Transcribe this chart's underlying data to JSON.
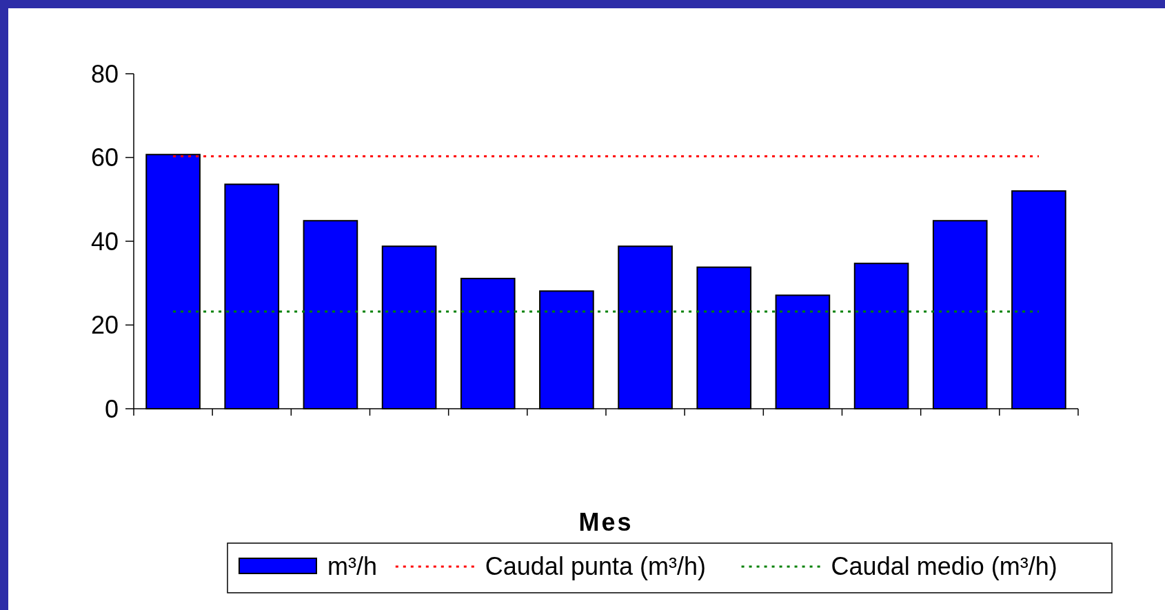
{
  "chart_data": {
    "type": "bar",
    "xlabel": "Mes",
    "categories": [
      null,
      null,
      null,
      null,
      null,
      null,
      null,
      null,
      null,
      null,
      null,
      null
    ],
    "series": [
      {
        "name": "m³/h",
        "color": "#0000ff",
        "values": [
          60.7,
          53.6,
          44.9,
          38.8,
          31.1,
          28.1,
          38.8,
          33.8,
          27.1,
          34.7,
          44.9,
          52.0
        ]
      },
      {
        "name": "Caudal punta (m³/h)",
        "type": "line",
        "color": "#ff0000",
        "line_style": "dotted",
        "values": [
          60.3,
          60.3,
          60.3,
          60.3,
          60.3,
          60.3,
          60.3,
          60.3,
          60.3,
          60.3,
          60.3,
          60.3
        ]
      },
      {
        "name": "Caudal medio (m³/h)",
        "type": "line",
        "color": "#008000",
        "line_style": "dotted",
        "values": [
          23.2,
          23.2,
          23.2,
          23.2,
          23.2,
          23.2,
          23.2,
          23.2,
          23.2,
          23.2,
          23.2,
          23.2
        ]
      }
    ],
    "ylim": [
      0,
      80
    ],
    "yticks": [
      0,
      20,
      40,
      60,
      80
    ],
    "legend": "bottom"
  }
}
